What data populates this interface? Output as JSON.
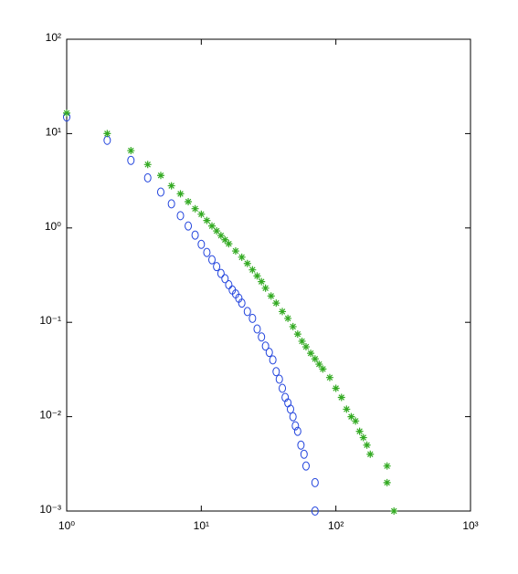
{
  "chart_data": {
    "type": "scatter",
    "xlog": true,
    "ylog": true,
    "xlim": [
      1,
      1000
    ],
    "ylim": [
      0.001,
      100
    ],
    "xticks": [
      {
        "value": 1,
        "label": "10⁰"
      },
      {
        "value": 10,
        "label": "10¹"
      },
      {
        "value": 100,
        "label": "10²"
      },
      {
        "value": 1000,
        "label": "10³"
      }
    ],
    "yticks": [
      {
        "value": 0.001,
        "label": "10⁻³"
      },
      {
        "value": 0.01,
        "label": "10⁻²"
      },
      {
        "value": 0.1,
        "label": "10⁻¹"
      },
      {
        "value": 1,
        "label": "10⁰"
      },
      {
        "value": 10,
        "label": "10¹"
      },
      {
        "value": 100,
        "label": "10²"
      }
    ],
    "series": [
      {
        "color": "#2244dd",
        "marker": "o",
        "x": [
          1,
          2,
          3,
          4,
          5,
          6,
          7,
          8,
          9,
          10,
          11,
          12,
          13,
          14,
          15,
          16,
          17,
          18,
          19,
          20,
          22,
          24,
          26,
          28,
          30,
          32,
          34,
          36,
          38,
          40,
          42,
          44,
          46,
          48,
          50,
          52,
          55,
          58,
          60,
          70,
          70
        ],
        "values": [
          15,
          8.5,
          5.2,
          3.4,
          2.4,
          1.8,
          1.35,
          1.05,
          0.84,
          0.67,
          0.55,
          0.46,
          0.39,
          0.33,
          0.29,
          0.25,
          0.22,
          0.2,
          0.18,
          0.16,
          0.13,
          0.11,
          0.085,
          0.07,
          0.056,
          0.048,
          0.04,
          0.03,
          0.025,
          0.02,
          0.016,
          0.014,
          0.012,
          0.01,
          0.008,
          0.007,
          0.005,
          0.004,
          0.003,
          0.002,
          0.001
        ]
      },
      {
        "color": "#33aa22",
        "marker": "*",
        "x": [
          1,
          2,
          3,
          4,
          5,
          6,
          7,
          8,
          9,
          10,
          11,
          12,
          13,
          14,
          15,
          16,
          18,
          20,
          22,
          24,
          26,
          28,
          30,
          33,
          36,
          40,
          44,
          48,
          52,
          56,
          60,
          65,
          70,
          75,
          80,
          90,
          100,
          110,
          120,
          130,
          140,
          150,
          160,
          170,
          180,
          240,
          240,
          270
        ],
        "values": [
          16.5,
          10,
          6.6,
          4.7,
          3.6,
          2.8,
          2.3,
          1.9,
          1.6,
          1.4,
          1.2,
          1.05,
          0.93,
          0.83,
          0.75,
          0.68,
          0.57,
          0.49,
          0.42,
          0.36,
          0.31,
          0.27,
          0.23,
          0.19,
          0.16,
          0.13,
          0.11,
          0.09,
          0.075,
          0.063,
          0.055,
          0.047,
          0.041,
          0.036,
          0.032,
          0.026,
          0.02,
          0.016,
          0.012,
          0.01,
          0.009,
          0.007,
          0.006,
          0.005,
          0.004,
          0.003,
          0.002,
          0.001
        ]
      }
    ]
  }
}
